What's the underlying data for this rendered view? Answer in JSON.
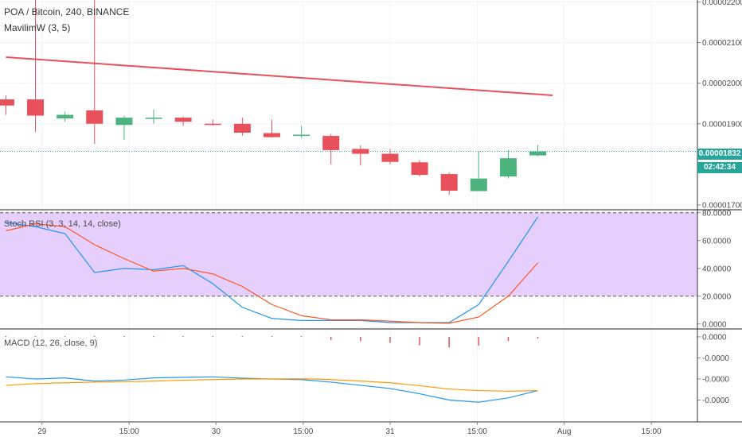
{
  "legend": {
    "title": "POA / Bitcoin, 240, BINANCE",
    "ma": "MavilimW (3, 5)",
    "rsi": "Stoch RSI (3, 3, 14, 14, close)",
    "macd": "MACD (12, 26, close, 9)"
  },
  "last_price_label": "0.00001832",
  "countdown_label": "02:42:34",
  "colors": {
    "up": "#4db37e",
    "down": "#e8505b",
    "ma_line": "#e8505b",
    "stoch_k": "#2196f3",
    "stoch_d": "#ff5722",
    "rsi_band": "#e6cffd",
    "macd_line": "#2196f3",
    "signal_line": "#ff9800",
    "hist": "#e8505b",
    "price_tag": "#26a69a",
    "last_price_line": "#26a69a"
  },
  "chart_data": [
    {
      "type": "candlestick",
      "title": "POA / Bitcoin, 240, BINANCE",
      "ylim": [
        1.69e-05,
        2.205e-05
      ],
      "y_ticks": [
        "0.00002200",
        "0.00002100",
        "0.00002000",
        "0.00001900",
        "0.00001700"
      ],
      "y_tick_values": [
        2.2e-05,
        2.1e-05,
        2e-05,
        1.9e-05,
        1.7e-05
      ],
      "x_ticks": [
        "29",
        "15:00",
        "30",
        "15:00",
        "31",
        "15:00",
        "Aug",
        "15:00"
      ],
      "x_tick_values": [
        1.22,
        4.17,
        7.11,
        10.06,
        13.0,
        15.95,
        18.89,
        21.84
      ],
      "xlim": [
        -0.2,
        23.4
      ],
      "last_price": 1.832e-05,
      "candles": [
        {
          "o": 1.96e-05,
          "h": 1.97e-05,
          "l": 1.922e-05,
          "c": 1.945e-05
        },
        {
          "o": 1.96e-05,
          "h": 2.215e-05,
          "l": 1.88e-05,
          "c": 1.92e-05
        },
        {
          "o": 1.913e-05,
          "h": 1.93e-05,
          "l": 1.905e-05,
          "c": 1.922e-05
        },
        {
          "o": 1.933e-05,
          "h": 2.21e-05,
          "l": 1.85e-05,
          "c": 1.9e-05
        },
        {
          "o": 1.897e-05,
          "h": 1.92e-05,
          "l": 1.86e-05,
          "c": 1.915e-05
        },
        {
          "o": 1.912e-05,
          "h": 1.935e-05,
          "l": 1.9e-05,
          "c": 1.915e-05
        },
        {
          "o": 1.915e-05,
          "h": 1.918e-05,
          "l": 1.895e-05,
          "c": 1.905e-05
        },
        {
          "o": 1.9e-05,
          "h": 1.91e-05,
          "l": 1.895e-05,
          "c": 1.898e-05
        },
        {
          "o": 1.9e-05,
          "h": 1.915e-05,
          "l": 1.87e-05,
          "c": 1.878e-05
        },
        {
          "o": 1.877e-05,
          "h": 1.91e-05,
          "l": 1.866e-05,
          "c": 1.867e-05
        },
        {
          "o": 1.87e-05,
          "h": 1.895e-05,
          "l": 1.865e-05,
          "c": 1.873e-05
        },
        {
          "o": 1.87e-05,
          "h": 1.875e-05,
          "l": 1.8e-05,
          "c": 1.835e-05
        },
        {
          "o": 1.838e-05,
          "h": 1.847e-05,
          "l": 1.797e-05,
          "c": 1.826e-05
        },
        {
          "o": 1.826e-05,
          "h": 1.838e-05,
          "l": 1.8e-05,
          "c": 1.806e-05
        },
        {
          "o": 1.805e-05,
          "h": 1.81e-05,
          "l": 1.77e-05,
          "c": 1.774e-05
        },
        {
          "o": 1.776e-05,
          "h": 1.78e-05,
          "l": 1.725e-05,
          "c": 1.735e-05
        },
        {
          "o": 1.734e-05,
          "h": 1.832e-05,
          "l": 1.734e-05,
          "c": 1.765e-05
        },
        {
          "o": 1.77e-05,
          "h": 1.835e-05,
          "l": 1.765e-05,
          "c": 1.815e-05
        },
        {
          "o": 1.822e-05,
          "h": 1.848e-05,
          "l": 1.82e-05,
          "c": 1.832e-05
        }
      ],
      "series": [
        {
          "name": "MavilimW (3, 5)",
          "x": [
            0,
            18.5
          ],
          "values": [
            2.064e-05,
            1.97e-05
          ]
        }
      ]
    },
    {
      "type": "line",
      "title": "Stoch RSI (3, 3, 14, 14, close)",
      "ylim": [
        -3,
        81
      ],
      "y_ticks": [
        "80.0000",
        "60.0000",
        "40.0000",
        "20.0000",
        "0.0000"
      ],
      "y_tick_values": [
        80,
        60,
        40,
        20,
        0
      ],
      "bands": [
        20,
        80
      ],
      "xlim": [
        -0.2,
        23.4
      ],
      "x": [
        0,
        1,
        2,
        3,
        4,
        5,
        6,
        7,
        8,
        9,
        10,
        11,
        12,
        13,
        14,
        15,
        16,
        17,
        18
      ],
      "series": [
        {
          "name": "K",
          "values": [
            73,
            70,
            65,
            37,
            40,
            39,
            42,
            29,
            12,
            4,
            2.5,
            2.5,
            2.5,
            1,
            1,
            1,
            14,
            45,
            77
          ]
        },
        {
          "name": "D",
          "values": [
            67,
            72,
            70,
            57,
            47,
            38,
            40,
            36,
            27,
            14,
            6,
            3,
            3,
            2,
            1,
            0.5,
            5,
            20,
            44
          ]
        }
      ]
    },
    {
      "type": "line",
      "title": "MACD (12, 26, close, 9)",
      "ylim": [
        -4e-09,
        3e-10
      ],
      "y_ticks": [
        "0.0000",
        "-0.0000",
        "-0.0000",
        "-0.0000"
      ],
      "y_tick_values": [
        0,
        -1e-09,
        -2e-09,
        -3e-09
      ],
      "xlim": [
        -0.2,
        23.4
      ],
      "x": [
        0,
        1,
        2,
        3,
        4,
        5,
        6,
        7,
        8,
        9,
        10,
        11,
        12,
        13,
        14,
        15,
        16,
        17,
        18
      ],
      "series": [
        {
          "name": "MACD",
          "values": [
            -1.9e-09,
            -2e-09,
            -1.95e-09,
            -2.1e-09,
            -2.05e-09,
            -1.95e-09,
            -1.92e-09,
            -1.9e-09,
            -1.96e-09,
            -2e-09,
            -2.03e-09,
            -2.15e-09,
            -2.3e-09,
            -2.45e-09,
            -2.7e-09,
            -3e-09,
            -3.1e-09,
            -2.9e-09,
            -2.55e-09
          ]
        },
        {
          "name": "Signal",
          "values": [
            -2.3e-09,
            -2.22e-09,
            -2.18e-09,
            -2.15e-09,
            -2.13e-09,
            -2.1e-09,
            -2.06e-09,
            -2.03e-09,
            -2e-09,
            -2e-09,
            -1.99e-09,
            -2.03e-09,
            -2.1e-09,
            -2.18e-09,
            -2.32e-09,
            -2.48e-09,
            -2.55e-09,
            -2.58e-09,
            -2.55e-09
          ]
        }
      ],
      "histogram": [
        0,
        3e-11,
        0,
        3e-11,
        0,
        3e-11,
        3e-11,
        0,
        0,
        0,
        0,
        -1.5e-10,
        -2e-10,
        -2.8e-10,
        -4e-10,
        -5e-10,
        -4.2e-10,
        -2e-10,
        -8e-11
      ]
    }
  ]
}
